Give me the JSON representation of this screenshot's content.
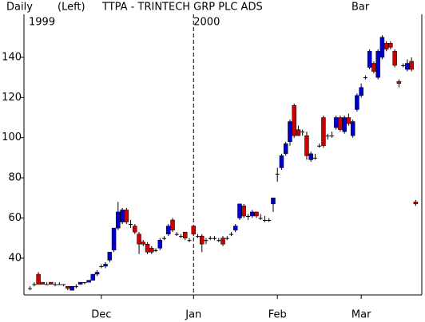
{
  "chart_data": {
    "type": "candlestick",
    "frequency": "Daily",
    "axis_side": "(Left)",
    "title": "TTPA - TRINTECH GRP PLC ADS",
    "chart_style": "Bar",
    "year_labels": [
      "1999",
      "2000"
    ],
    "categories": [
      null,
      null,
      null,
      null,
      null,
      null,
      null,
      null,
      null,
      null,
      null,
      null,
      null,
      null,
      null,
      null,
      null,
      "Dec",
      null,
      null,
      null,
      null,
      null,
      null,
      null,
      null,
      null,
      null,
      null,
      null,
      null,
      null,
      null,
      null,
      null,
      null,
      null,
      null,
      null,
      "Jan",
      null,
      null,
      null,
      null,
      null,
      null,
      null,
      null,
      null,
      null,
      null,
      null,
      null,
      null,
      null,
      null,
      null,
      null,
      null,
      "Feb",
      null,
      null,
      null,
      null,
      null,
      null,
      null,
      null,
      null,
      null,
      null,
      null,
      null,
      null,
      null,
      null,
      null,
      null,
      null,
      "Mar",
      null,
      null,
      null,
      null,
      null,
      null,
      null,
      null,
      null,
      null,
      null,
      null,
      null
    ],
    "open": [
      25,
      27,
      32,
      28,
      27,
      28,
      27,
      27,
      27,
      26,
      24,
      26,
      27,
      28,
      28,
      29,
      32,
      36,
      36,
      39,
      44,
      55,
      58,
      64,
      57,
      56,
      52,
      48,
      47,
      45,
      44,
      45,
      50,
      52,
      59,
      52,
      51,
      53,
      49,
      56,
      51,
      51,
      49,
      50,
      50,
      49,
      50,
      50,
      52,
      54,
      60,
      66,
      61,
      61,
      63,
      60,
      59,
      59,
      67,
      82,
      85,
      92,
      98,
      116,
      104,
      103,
      101,
      89,
      90,
      96,
      110,
      101,
      101,
      105,
      110,
      103,
      110,
      101,
      114,
      121,
      130,
      135,
      137,
      130,
      140,
      147,
      147,
      143,
      128,
      136,
      134,
      138,
      68
    ],
    "high": [
      26,
      28,
      33,
      28,
      28,
      28,
      28,
      28,
      27,
      26,
      26,
      27,
      28,
      28,
      29,
      32,
      34,
      37,
      38,
      43,
      55,
      68,
      65,
      65,
      59,
      57,
      53,
      49,
      48,
      46,
      45,
      50,
      51,
      57,
      60,
      53,
      52,
      53,
      50,
      56,
      52,
      52,
      50,
      51,
      51,
      50,
      51,
      51,
      53,
      57,
      67,
      67,
      62,
      64,
      63,
      62,
      61,
      60,
      70,
      85,
      92,
      98,
      109,
      117,
      106,
      104,
      103,
      93,
      92,
      97,
      111,
      102,
      103,
      111,
      111,
      111,
      112,
      109,
      122,
      127,
      131,
      144,
      138,
      144,
      151,
      148,
      148,
      144,
      129,
      137,
      139,
      140,
      69
    ],
    "low": [
      24,
      26,
      27,
      27,
      27,
      27,
      26,
      27,
      26,
      24,
      24,
      25,
      27,
      27,
      28,
      29,
      31,
      35,
      35,
      38,
      43,
      54,
      57,
      57,
      55,
      52,
      42,
      46,
      42,
      42,
      43,
      44,
      49,
      51,
      53,
      51,
      50,
      49,
      48,
      51,
      50,
      43,
      47,
      49,
      49,
      48,
      46,
      49,
      51,
      53,
      59,
      60,
      59,
      60,
      60,
      59,
      58,
      58,
      63,
      78,
      84,
      91,
      96,
      100,
      101,
      101,
      89,
      88,
      89,
      95,
      95,
      99,
      100,
      104,
      103,
      102,
      106,
      100,
      113,
      120,
      129,
      134,
      132,
      129,
      139,
      143,
      144,
      135,
      125,
      135,
      133,
      133,
      66
    ],
    "close": [
      25,
      27,
      27,
      27,
      27,
      27,
      27,
      27,
      27,
      25,
      26,
      26,
      28,
      28,
      29,
      32,
      33,
      36,
      37,
      43,
      55,
      63,
      64,
      58,
      57,
      53,
      47,
      47,
      43,
      43,
      44,
      49,
      50,
      56,
      54,
      52,
      51,
      50,
      49,
      52,
      51,
      47,
      49,
      50,
      50,
      49,
      47,
      50,
      52,
      56,
      67,
      61,
      61,
      63,
      61,
      60,
      59,
      59,
      70,
      82,
      91,
      97,
      108,
      101,
      101,
      103,
      91,
      92,
      90,
      96,
      96,
      101,
      101,
      110,
      104,
      110,
      107,
      108,
      121,
      125,
      130,
      143,
      133,
      143,
      150,
      144,
      145,
      136,
      127,
      136,
      137,
      134,
      67
    ],
    "up_color": "#0000cc",
    "down_color": "#cc0000",
    "flat_color": "#000000",
    "ylim": [
      21.7,
      161.4
    ],
    "yticks": [
      40,
      60,
      80,
      100,
      120,
      140
    ]
  }
}
